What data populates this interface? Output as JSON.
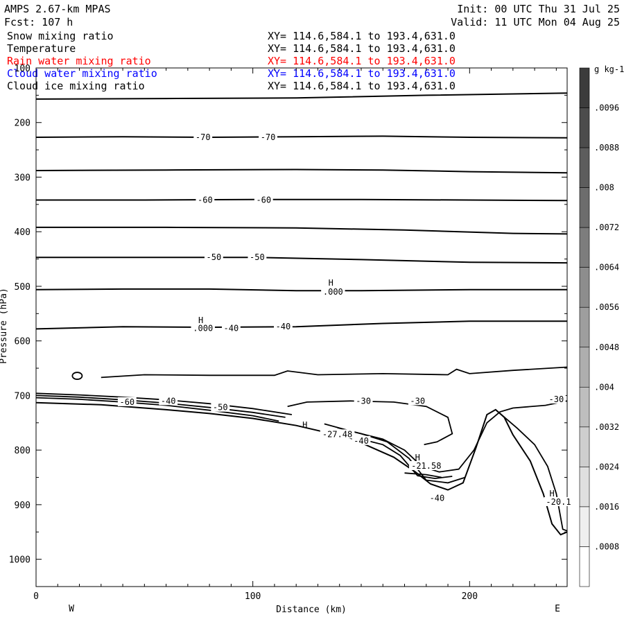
{
  "header": {
    "model": "AMPS 2.67-km MPAS",
    "forecast": "Fcst: 107 h",
    "init": "Init: 00 UTC Thu 31 Jul 25",
    "valid": "Valid: 11 UTC Mon 04 Aug 25"
  },
  "legend": [
    {
      "name": "Snow mixing ratio",
      "xy": "XY= 114.6,584.1 to 193.4,631.0",
      "color": "#000000"
    },
    {
      "name": "Temperature",
      "xy": "XY= 114.6,584.1 to 193.4,631.0",
      "color": "#000000"
    },
    {
      "name": "Rain water mixing ratio",
      "xy": "XY= 114.6,584.1 to 193.4,631.0",
      "color": "#ff0000"
    },
    {
      "name": "Cloud water mixing ratio",
      "xy": "XY= 114.6,584.1 to 193.4,631.0",
      "color": "#0000ff"
    },
    {
      "name": "Cloud ice mixing ratio",
      "xy": "XY= 114.6,584.1 to 193.4,631.0",
      "color": "#000000"
    }
  ],
  "chart_data": {
    "type": "line",
    "title": "AMPS 2.67-km MPAS",
    "xlabel": "Distance (km)",
    "ylabel": "Pressure (hPa)",
    "xlim": [
      0,
      245
    ],
    "ylim": [
      1050,
      100
    ],
    "x_ticks": [
      0,
      100,
      200
    ],
    "y_ticks": [
      100,
      200,
      300,
      400,
      500,
      600,
      700,
      800,
      900,
      1000
    ],
    "x_end_labels": {
      "left": "W",
      "right": "E"
    },
    "colorbar": {
      "unit": "g kg-1",
      "ticks": [
        ".0096",
        ".0088",
        ".008",
        ".0072",
        ".0064",
        ".0056",
        ".0048",
        ".004",
        ".0032",
        ".0024",
        ".0016",
        ".0008"
      ],
      "levels": 13
    },
    "isotherms": [
      {
        "level": null,
        "points": [
          [
            0,
            157
          ],
          [
            60,
            156
          ],
          [
            120,
            155
          ],
          [
            180,
            150
          ],
          [
            245,
            146
          ]
        ]
      },
      {
        "level": -70,
        "points": [
          [
            0,
            227
          ],
          [
            40,
            226
          ],
          [
            80,
            227
          ],
          [
            120,
            226
          ],
          [
            160,
            225
          ],
          [
            200,
            227
          ],
          [
            245,
            228
          ]
        ]
      },
      {
        "level": null,
        "points": [
          [
            0,
            288
          ],
          [
            60,
            287
          ],
          [
            120,
            286
          ],
          [
            160,
            287
          ],
          [
            200,
            290
          ],
          [
            245,
            292
          ]
        ]
      },
      {
        "level": -60,
        "points": [
          [
            0,
            342
          ],
          [
            50,
            342
          ],
          [
            100,
            341
          ],
          [
            150,
            341
          ],
          [
            200,
            342
          ],
          [
            245,
            343
          ]
        ]
      },
      {
        "level": null,
        "points": [
          [
            0,
            392
          ],
          [
            60,
            392
          ],
          [
            120,
            393
          ],
          [
            170,
            397
          ],
          [
            220,
            403
          ],
          [
            245,
            404
          ]
        ]
      },
      {
        "level": -50,
        "points": [
          [
            0,
            447
          ],
          [
            50,
            447
          ],
          [
            100,
            447
          ],
          [
            150,
            451
          ],
          [
            200,
            456
          ],
          [
            245,
            457
          ]
        ]
      },
      {
        "level": null,
        "points": [
          [
            0,
            506
          ],
          [
            40,
            505
          ],
          [
            80,
            505
          ],
          [
            120,
            508
          ],
          [
            150,
            508
          ],
          [
            200,
            506
          ],
          [
            245,
            506
          ]
        ]
      },
      {
        "level": -40,
        "points": [
          [
            0,
            578
          ],
          [
            40,
            574
          ],
          [
            80,
            575
          ],
          [
            120,
            574
          ],
          [
            160,
            568
          ],
          [
            200,
            564
          ],
          [
            245,
            564
          ]
        ]
      }
    ],
    "labels": [
      {
        "text": "-70",
        "x": 77,
        "p": 227
      },
      {
        "text": "-70",
        "x": 107,
        "p": 227
      },
      {
        "text": "-60",
        "x": 78,
        "p": 342
      },
      {
        "text": "-60",
        "x": 105,
        "p": 342
      },
      {
        "text": "-50",
        "x": 82,
        "p": 447
      },
      {
        "text": "-50",
        "x": 102,
        "p": 447
      },
      {
        "text": "-40",
        "x": 90,
        "p": 577
      },
      {
        "text": "-40",
        "x": 114,
        "p": 574
      },
      {
        "text": "-40",
        "x": 61,
        "p": 710
      },
      {
        "text": "-50",
        "x": 85,
        "p": 722
      },
      {
        "text": "-30",
        "x": 151,
        "p": 710
      },
      {
        "text": "-30",
        "x": 176,
        "p": 710
      },
      {
        "text": "-30",
        "x": 240,
        "p": 707
      },
      {
        "text": "-40",
        "x": 150,
        "p": 783
      },
      {
        "text": "-40",
        "x": 185,
        "p": 888
      },
      {
        "text": ".000",
        "x": 137,
        "p": 510
      },
      {
        "text": ".000",
        "x": 77,
        "p": 577
      },
      {
        "text": "-27.48",
        "x": 139,
        "p": 771
      },
      {
        "text": "-21.58",
        "x": 180,
        "p": 829
      },
      {
        "text": "-20.1",
        "x": 241,
        "p": 895
      },
      {
        "text": "-60",
        "x": 42,
        "p": 712
      }
    ],
    "highs": [
      {
        "text": "H",
        "x": 136,
        "p": 494
      },
      {
        "text": "H",
        "x": 76,
        "p": 562
      },
      {
        "text": "H",
        "x": 124,
        "p": 754
      },
      {
        "text": "H",
        "x": 176,
        "p": 814
      },
      {
        "text": "H",
        "x": 238,
        "p": 880
      }
    ],
    "terrain": [
      [
        0,
        713
      ],
      [
        30,
        717
      ],
      [
        60,
        726
      ],
      [
        80,
        733
      ],
      [
        100,
        742
      ],
      [
        120,
        755
      ],
      [
        145,
        778
      ],
      [
        165,
        813
      ],
      [
        175,
        840
      ],
      [
        182,
        862
      ],
      [
        190,
        873
      ],
      [
        197,
        860
      ],
      [
        203,
        795
      ],
      [
        208,
        735
      ],
      [
        212,
        726
      ],
      [
        216,
        740
      ],
      [
        220,
        772
      ],
      [
        228,
        820
      ],
      [
        234,
        880
      ],
      [
        238,
        935
      ],
      [
        242,
        955
      ],
      [
        245,
        950
      ]
    ]
  }
}
